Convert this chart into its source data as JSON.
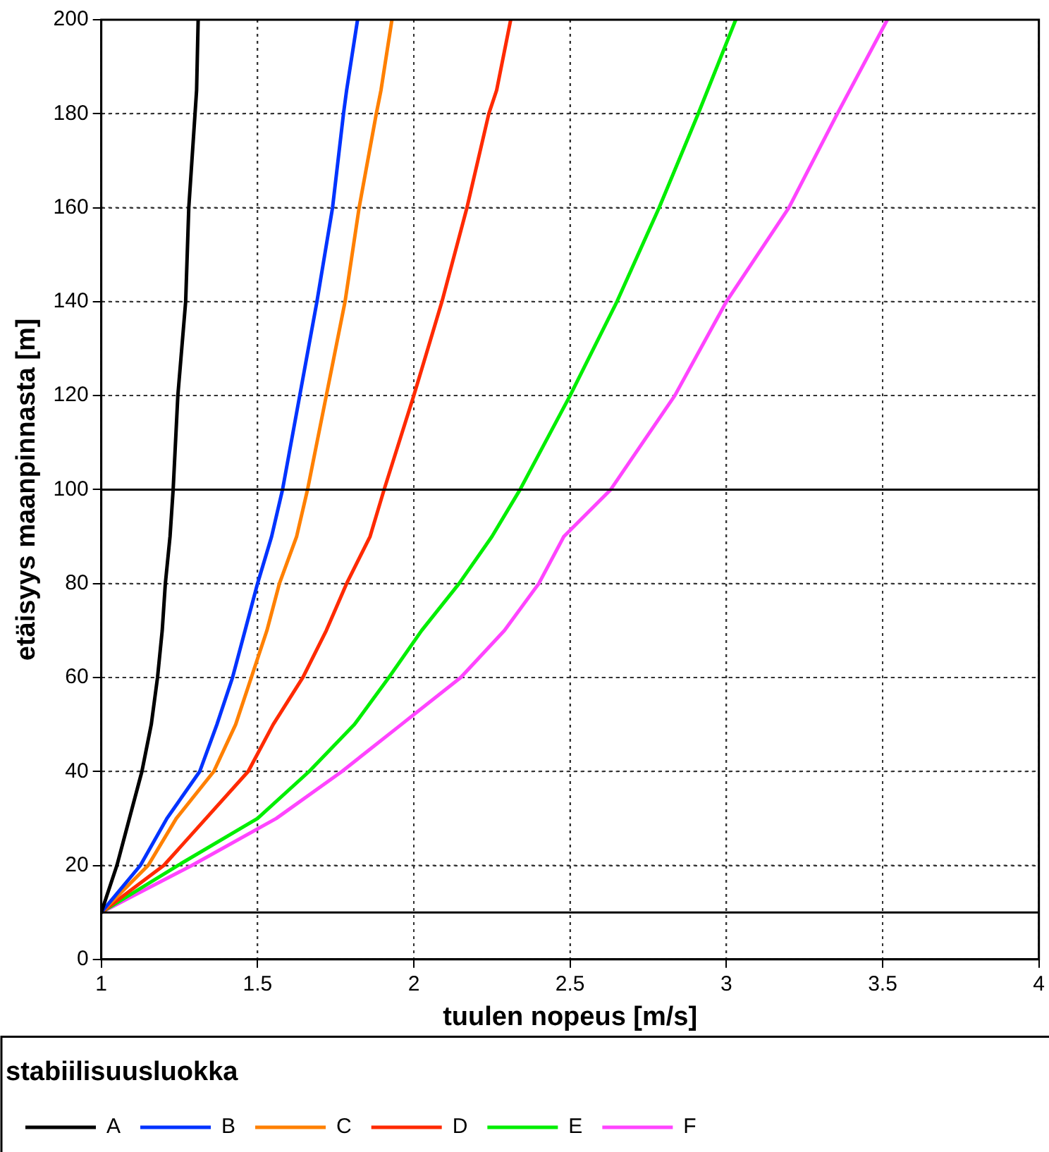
{
  "chart_data": {
    "type": "line",
    "xlabel": "tuulen nopeus [m/s]",
    "ylabel": "etäisyys maanpinnasta [m]",
    "legend_title": "stabiilisuusluokka",
    "legend": "bottom",
    "grid": true,
    "marker": "none",
    "line_style": "solid",
    "xlim": [
      1,
      4
    ],
    "xticks": [
      1,
      1.5,
      2,
      2.5,
      3,
      3.5,
      4
    ],
    "ylim": [
      0,
      200
    ],
    "yticks": [
      0,
      20,
      40,
      60,
      80,
      100,
      120,
      140,
      160,
      180,
      200
    ],
    "ref_lines": [
      {
        "axis": "y",
        "value": 10,
        "color": "#000000"
      },
      {
        "axis": "y",
        "value": 100,
        "color": "#000000"
      }
    ],
    "series": [
      {
        "name": "A",
        "color": "#000000",
        "x": [
          1,
          1.05,
          1.09,
          1.13,
          1.16,
          1.18,
          1.195,
          1.205,
          1.22,
          1.23,
          1.245,
          1.27,
          1.28,
          1.3,
          1.305,
          1.31
        ],
        "values": [
          10,
          20,
          30,
          40,
          50,
          60,
          70,
          80,
          90,
          100,
          120,
          140,
          160,
          180,
          185,
          200
        ]
      },
      {
        "name": "B",
        "color": "#0033ff",
        "x": [
          1,
          1.125,
          1.21,
          1.315,
          1.37,
          1.42,
          1.46,
          1.5,
          1.545,
          1.58,
          1.635,
          1.69,
          1.74,
          1.775,
          1.785,
          1.82
        ],
        "values": [
          10,
          20,
          30,
          40,
          50,
          60,
          70,
          80,
          90,
          100,
          120,
          140,
          160,
          180,
          185,
          200
        ]
      },
      {
        "name": "C",
        "color": "#ff8000",
        "x": [
          1,
          1.15,
          1.24,
          1.36,
          1.43,
          1.48,
          1.53,
          1.57,
          1.625,
          1.66,
          1.72,
          1.78,
          1.825,
          1.88,
          1.895,
          1.93
        ],
        "values": [
          10,
          20,
          30,
          40,
          50,
          60,
          70,
          80,
          90,
          100,
          120,
          140,
          160,
          180,
          185,
          200
        ]
      },
      {
        "name": "D",
        "color": "#ff2a00",
        "x": [
          1,
          1.2,
          1.335,
          1.47,
          1.55,
          1.645,
          1.72,
          1.785,
          1.86,
          1.905,
          2,
          2.09,
          2.17,
          2.24,
          2.265,
          2.31
        ],
        "values": [
          10,
          20,
          30,
          40,
          50,
          60,
          70,
          80,
          90,
          100,
          120,
          140,
          160,
          180,
          185,
          200
        ]
      },
      {
        "name": "E",
        "color": "#00ee00",
        "x": [
          1,
          1.245,
          1.5,
          1.665,
          1.81,
          1.92,
          2.025,
          2.145,
          2.25,
          2.34,
          2.5,
          2.65,
          2.785,
          2.91,
          3.03
        ],
        "values": [
          10,
          20,
          30,
          40,
          50,
          60,
          70,
          80,
          90,
          100,
          120,
          140,
          160,
          180,
          200
        ]
      },
      {
        "name": "F",
        "color": "#ff44ff",
        "x": [
          1,
          1.29,
          1.56,
          1.77,
          1.96,
          2.15,
          2.29,
          2.4,
          2.48,
          2.63,
          2.835,
          3,
          3.2,
          3.355,
          3.515
        ],
        "values": [
          10,
          20,
          30,
          40,
          50,
          60,
          70,
          80,
          90,
          100,
          120,
          140,
          160,
          180,
          200
        ]
      }
    ]
  }
}
